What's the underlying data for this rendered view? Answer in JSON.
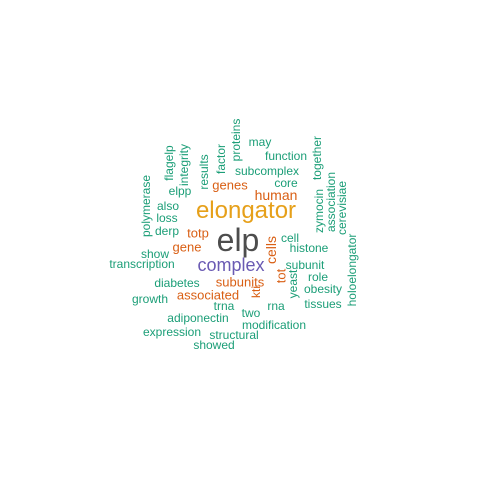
{
  "colors": {
    "dark": "#4d4d4d",
    "gold": "#e6a01a",
    "purple": "#6a5ab3",
    "orange": "#d95f14",
    "teal": "#1b9e77"
  },
  "words": [
    {
      "text": "elp",
      "color": "dark"
    },
    {
      "text": "elongator",
      "color": "gold"
    },
    {
      "text": "complex",
      "color": "purple"
    },
    {
      "text": "human",
      "color": "orange"
    },
    {
      "text": "genes",
      "color": "orange"
    },
    {
      "text": "totp",
      "color": "orange"
    },
    {
      "text": "gene",
      "color": "orange"
    },
    {
      "text": "subunits",
      "color": "orange"
    },
    {
      "text": "associated",
      "color": "orange"
    },
    {
      "text": "cells",
      "color": "orange"
    },
    {
      "text": "tot",
      "color": "orange"
    },
    {
      "text": "kti",
      "color": "orange"
    },
    {
      "text": "may",
      "color": "teal"
    },
    {
      "text": "function",
      "color": "teal"
    },
    {
      "text": "subcomplex",
      "color": "teal"
    },
    {
      "text": "core",
      "color": "teal"
    },
    {
      "text": "proteins",
      "color": "teal"
    },
    {
      "text": "factor",
      "color": "teal"
    },
    {
      "text": "results",
      "color": "teal"
    },
    {
      "text": "integrity",
      "color": "teal"
    },
    {
      "text": "flagelp",
      "color": "teal"
    },
    {
      "text": "polymerase",
      "color": "teal"
    },
    {
      "text": "elpp",
      "color": "teal"
    },
    {
      "text": "also",
      "color": "teal"
    },
    {
      "text": "loss",
      "color": "teal"
    },
    {
      "text": "derp",
      "color": "teal"
    },
    {
      "text": "show",
      "color": "teal"
    },
    {
      "text": "transcription",
      "color": "teal"
    },
    {
      "text": "diabetes",
      "color": "teal"
    },
    {
      "text": "growth",
      "color": "teal"
    },
    {
      "text": "trna",
      "color": "teal"
    },
    {
      "text": "adiponectin",
      "color": "teal"
    },
    {
      "text": "two",
      "color": "teal"
    },
    {
      "text": "expression",
      "color": "teal"
    },
    {
      "text": "structural",
      "color": "teal"
    },
    {
      "text": "modification",
      "color": "teal"
    },
    {
      "text": "showed",
      "color": "teal"
    },
    {
      "text": "rna",
      "color": "teal"
    },
    {
      "text": "cell",
      "color": "teal"
    },
    {
      "text": "histone",
      "color": "teal"
    },
    {
      "text": "subunit",
      "color": "teal"
    },
    {
      "text": "role",
      "color": "teal"
    },
    {
      "text": "obesity",
      "color": "teal"
    },
    {
      "text": "tissues",
      "color": "teal"
    },
    {
      "text": "yeast",
      "color": "teal"
    },
    {
      "text": "zymocin",
      "color": "teal"
    },
    {
      "text": "together",
      "color": "teal"
    },
    {
      "text": "association",
      "color": "teal"
    },
    {
      "text": "cerevisiae",
      "color": "teal"
    },
    {
      "text": "holoelongator",
      "color": "teal"
    }
  ]
}
